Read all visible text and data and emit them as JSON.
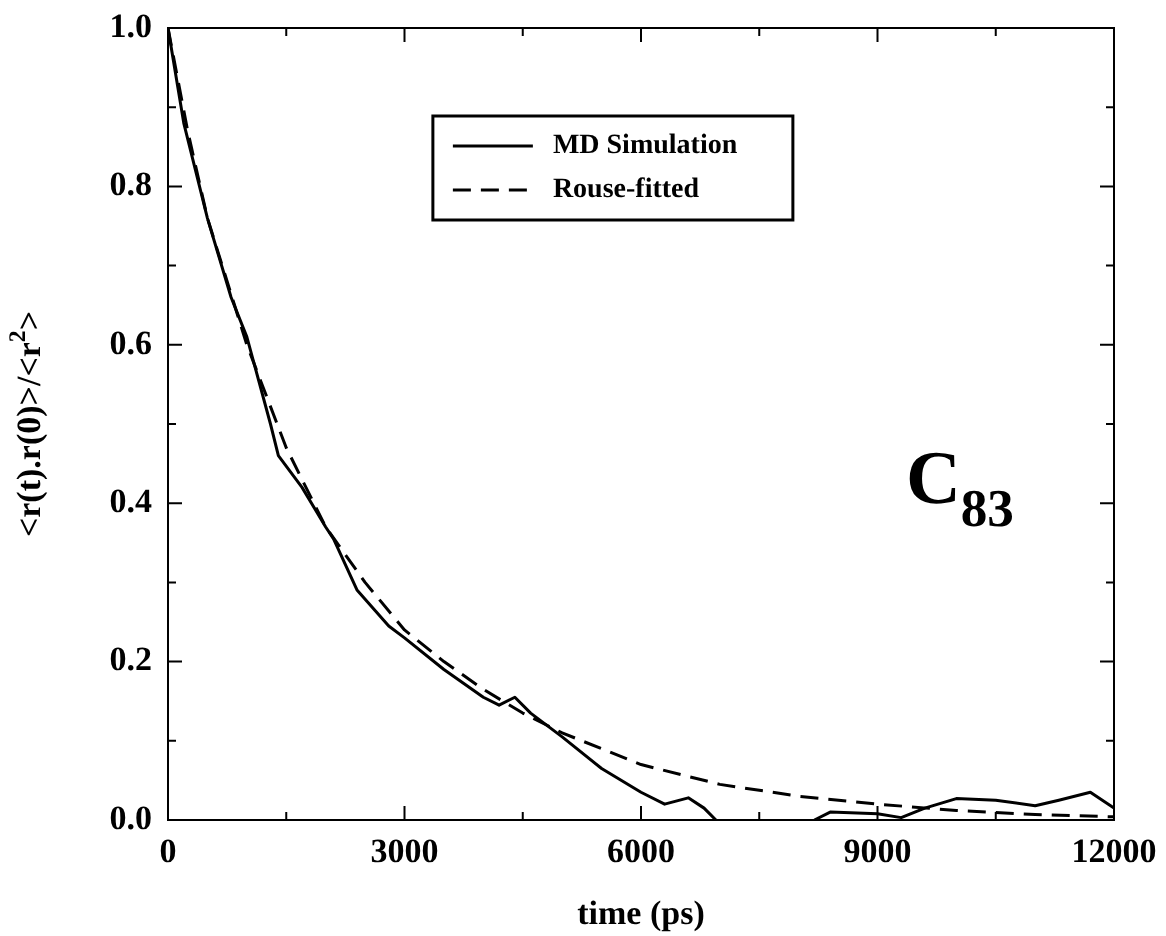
{
  "chart_data": {
    "type": "line",
    "xlabel": "time (ps)",
    "ylabel": "<r(t).r(0)>/<r$^{2}$>",
    "annotations": [
      "C$_{83}$"
    ],
    "xlim": [
      0,
      12000
    ],
    "ylim": [
      0,
      1.0
    ],
    "xticks": [
      0,
      {
        "value": 1500,
        "label": null
      },
      3000,
      {
        "value": 4500,
        "label": null
      },
      6000,
      {
        "value": 7500,
        "label": null
      },
      9000,
      {
        "value": 10500,
        "label": null
      },
      12000
    ],
    "yticks": [
      {
        "value": 0,
        "label": "0.0"
      },
      {
        "value": 0.1,
        "label": null
      },
      0.2,
      {
        "value": 0.3,
        "label": null
      },
      0.4,
      {
        "value": 0.5,
        "label": null
      },
      0.6,
      {
        "value": 0.7,
        "label": null
      },
      0.8,
      {
        "value": 0.9,
        "label": null
      },
      {
        "value": 1.0,
        "label": "1.0"
      }
    ],
    "grid": false,
    "legend": "top",
    "marker": "none",
    "series": [
      {
        "name": "MD Simulation",
        "color": "#000000",
        "line_style": "solid",
        "x": [
          0,
          200,
          500,
          800,
          1000,
          1300,
          1400,
          1700,
          2000,
          2100,
          2400,
          2800,
          3000,
          3500,
          4000,
          4200,
          4400,
          4600,
          5000,
          5500,
          6000,
          6300,
          6600,
          6800,
          6950,
          7500,
          8200,
          8400,
          9000,
          9300,
          9600,
          10000,
          10500,
          11000,
          11300,
          11700,
          12000
        ],
        "values": [
          1.0,
          0.88,
          0.76,
          0.66,
          0.61,
          0.5,
          0.46,
          0.42,
          0.37,
          0.355,
          0.29,
          0.245,
          0.23,
          0.19,
          0.155,
          0.145,
          0.155,
          0.135,
          0.105,
          0.065,
          0.035,
          0.02,
          0.028,
          0.015,
          0,
          null,
          0,
          0.01,
          0.008,
          0.003,
          0.015,
          0.027,
          0.025,
          0.018,
          0.025,
          0.035,
          0.015
        ]
      },
      {
        "name": "Rouse-fitted",
        "color": "#000000",
        "line_style": "dashed",
        "x": [
          0,
          250,
          500,
          1000,
          1500,
          2000,
          2500,
          3000,
          3500,
          4000,
          4500,
          5000,
          6000,
          7000,
          8000,
          9000,
          10000,
          11000,
          12000
        ],
        "values": [
          1.0,
          0.87,
          0.76,
          0.6,
          0.47,
          0.37,
          0.3,
          0.24,
          0.2,
          0.165,
          0.135,
          0.11,
          0.07,
          0.045,
          0.03,
          0.02,
          0.012,
          0.007,
          0.004
        ]
      }
    ]
  }
}
